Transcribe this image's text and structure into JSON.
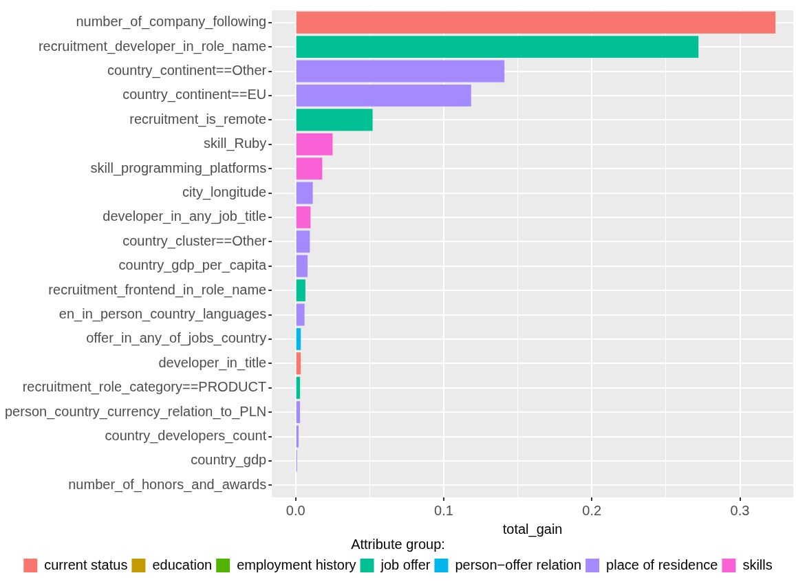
{
  "chart_data": {
    "type": "bar",
    "orientation": "horizontal",
    "stacked": true,
    "xlabel": "total_gain",
    "legend_title": "Attribute group:",
    "legend": "bottom",
    "grid": true,
    "categories": [
      "number_of_company_following",
      "recruitment_developer_in_role_name",
      "country_continent==Other",
      "country_continent==EU",
      "recruitment_is_remote",
      "skill_Ruby",
      "skill_programming_platforms",
      "city_longitude",
      "developer_in_any_job_title",
      "country_cluster==Other",
      "country_gdp_per_capita",
      "recruitment_frontend_in_role_name",
      "en_in_person_country_languages",
      "offer_in_any_of_jobs_country",
      "developer_in_title",
      "recruitment_role_category==PRODUCT",
      "person_country_currency_relation_to_PLN",
      "country_developers_count",
      "country_gdp",
      "number_of_honors_and_awards"
    ],
    "xlim": [
      -0.016,
      0.336
    ],
    "xticks": [
      {
        "value": 0,
        "label": "0.0"
      },
      {
        "value": 0.05,
        "label": null
      },
      {
        "value": 0.1,
        "label": "0.1"
      },
      {
        "value": 0.15,
        "label": null
      },
      {
        "value": 0.2,
        "label": "0.2"
      },
      {
        "value": 0.25,
        "label": null
      },
      {
        "value": 0.3,
        "label": "0.3"
      }
    ],
    "series": [
      {
        "name": "current status",
        "color": "#f8766d",
        "values": [
          0.324,
          null,
          null,
          null,
          null,
          null,
          null,
          null,
          null,
          null,
          null,
          null,
          null,
          null,
          0.0035,
          null,
          null,
          null,
          null,
          null
        ]
      },
      {
        "name": "education",
        "color": "#c49a00",
        "values": [
          null,
          null,
          null,
          null,
          null,
          null,
          null,
          null,
          null,
          null,
          null,
          null,
          null,
          null,
          null,
          null,
          null,
          null,
          null,
          null
        ]
      },
      {
        "name": "employment history",
        "color": "#53b400",
        "values": [
          null,
          null,
          null,
          null,
          null,
          null,
          null,
          null,
          null,
          null,
          null,
          null,
          null,
          null,
          null,
          null,
          null,
          null,
          null,
          null
        ]
      },
      {
        "name": "job offer",
        "color": "#00c094",
        "values": [
          null,
          0.272,
          null,
          null,
          0.052,
          null,
          null,
          null,
          null,
          null,
          null,
          0.0066,
          null,
          null,
          null,
          0.003,
          null,
          null,
          null,
          null
        ]
      },
      {
        "name": "person−offer relation",
        "color": "#00b6eb",
        "values": [
          null,
          null,
          null,
          null,
          null,
          null,
          null,
          null,
          null,
          null,
          null,
          null,
          null,
          0.0035,
          null,
          null,
          null,
          null,
          null,
          null
        ]
      },
      {
        "name": "place of residence",
        "color": "#a58aff",
        "values": [
          null,
          null,
          0.141,
          0.1185,
          null,
          null,
          null,
          0.0116,
          null,
          0.0096,
          0.0081,
          null,
          0.006,
          null,
          null,
          null,
          0.003,
          0.002,
          0.001,
          0
        ]
      },
      {
        "name": "skills",
        "color": "#fb61d7",
        "values": [
          null,
          null,
          null,
          null,
          null,
          0.025,
          0.018,
          null,
          0.0101,
          null,
          null,
          null,
          null,
          null,
          null,
          null,
          null,
          null,
          null,
          null
        ]
      }
    ]
  }
}
